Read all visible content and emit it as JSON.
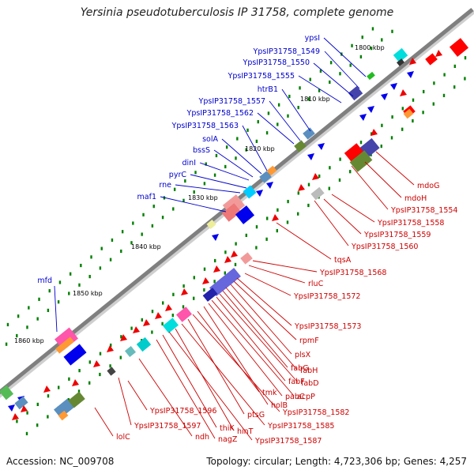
{
  "title": "Yersinia pseudotuberculosis IP 31758, complete genome",
  "footer": {
    "accession": "Accession: NC_009708",
    "summary": "Topology: circular; Length: 4,723,306 bp; Genes: 4,257"
  },
  "colors": {
    "backbone": "#808080",
    "forward_label": "#0000cc",
    "reverse_label": "#cc0000",
    "feature_blue": "#0000ee",
    "feature_red": "#ee0000",
    "tick": "#008000"
  },
  "kbp_marks": [
    "1800 kbp",
    "1810 kbp",
    "1820 kbp",
    "1830 kbp",
    "1840 kbp",
    "1850 kbp",
    "1860 kbp"
  ],
  "forward_genes": [
    "ypsI",
    "YpsIP31758_1549",
    "YpsIP31758_1550",
    "YpsIP31758_1555",
    "htrB1",
    "YpsIP31758_1557",
    "YpsIP31758_1562",
    "YpsIP31758_1563",
    "solA",
    "bssS",
    "dinI",
    "pyrC",
    "rne",
    "maf1",
    "mfd"
  ],
  "reverse_genes": [
    "mdoG",
    "mdoH",
    "YpsIP31758_1554",
    "YpsIP31758_1558",
    "YpsIP31758_1559",
    "YpsIP31758_1560",
    "tqsA",
    "YpsIP31758_1568",
    "rluC",
    "YpsIP31758_1572",
    "YpsIP31758_1573",
    "rpmF",
    "plsX",
    "fabH",
    "fabG",
    "fabD",
    "fabF",
    "acpP",
    "pabC",
    "holB",
    "tmk",
    "YpsIP31758_1582",
    "ptsG",
    "YpsIP31758_1585",
    "hinT",
    "YpsIP31758_1587",
    "thiK",
    "nagZ",
    "YpsIP31758_1596",
    "ndh",
    "YpsIP31758_1597",
    "lolC"
  ]
}
